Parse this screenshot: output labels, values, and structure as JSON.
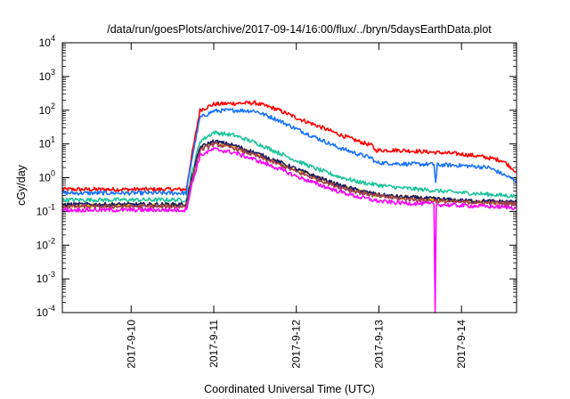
{
  "chart_data": {
    "type": "line",
    "title": "/data/run/goesPlots/archive/2017-09-14/16:00/flux/../bryn/5daysEarthData.plot",
    "xlabel": "Coordinated Universal Time (UTC)",
    "ylabel": "cGy/day",
    "y_scale": "log",
    "ylim": [
      0.0001,
      10000
    ],
    "xlim": [
      "2017-09-09 04:00",
      "2017-09-14 16:00"
    ],
    "grid": false,
    "legend": "none",
    "x_ticks": [
      "2017-9-10",
      "2017-9-11",
      "2017-9-12",
      "2017-9-13",
      "2017-9-14"
    ],
    "y_ticks": [
      {
        "base": "10",
        "exp": "4"
      },
      {
        "base": "10",
        "exp": "3"
      },
      {
        "base": "10",
        "exp": "2"
      },
      {
        "base": "10",
        "exp": "1"
      },
      {
        "base": "10",
        "exp": "0"
      },
      {
        "base": "10",
        "exp": "-1"
      },
      {
        "base": "10",
        "exp": "-2"
      },
      {
        "base": "10",
        "exp": "-3"
      },
      {
        "base": "10",
        "exp": "-4"
      }
    ],
    "series": [
      {
        "color": "#ff0000",
        "x": [
          "2017-09-09 04:00",
          "2017-09-10 16:00",
          "2017-09-10 17:30",
          "2017-09-10 20:00",
          "2017-09-11 00:00",
          "2017-09-11 06:00",
          "2017-09-11 12:00",
          "2017-09-11 18:00",
          "2017-09-12 00:00",
          "2017-09-12 06:00",
          "2017-09-12 12:00",
          "2017-09-12 18:00",
          "2017-09-12 22:00",
          "2017-09-12 23:00",
          "2017-09-13 06:00",
          "2017-09-13 12:00",
          "2017-09-13 18:00",
          "2017-09-14 00:00",
          "2017-09-14 06:00",
          "2017-09-14 12:00",
          "2017-09-14 16:00"
        ],
        "y": [
          0.45,
          0.45,
          4,
          100,
          150,
          160,
          165,
          110,
          60,
          35,
          20,
          12,
          9,
          6.5,
          6.5,
          6,
          5.5,
          5,
          4.2,
          3.2,
          1.5
        ]
      },
      {
        "color": "#1a73ff",
        "x": [
          "2017-09-09 04:00",
          "2017-09-10 16:00",
          "2017-09-10 17:30",
          "2017-09-10 20:00",
          "2017-09-11 00:00",
          "2017-09-11 06:00",
          "2017-09-11 12:00",
          "2017-09-11 18:00",
          "2017-09-12 00:00",
          "2017-09-12 06:00",
          "2017-09-12 12:00",
          "2017-09-12 18:00",
          "2017-09-12 22:00",
          "2017-09-12 23:00",
          "2017-09-13 06:00",
          "2017-09-13 12:00",
          "2017-09-13 16:00",
          "2017-09-13 16:30",
          "2017-09-13 17:00",
          "2017-09-14 00:00",
          "2017-09-14 08:00",
          "2017-09-14 16:00"
        ],
        "y": [
          0.35,
          0.35,
          3,
          60,
          95,
          100,
          95,
          55,
          28,
          15,
          8,
          5,
          3.8,
          2.8,
          2.6,
          2.5,
          2.5,
          0.7,
          2.4,
          2.3,
          2,
          0.8
        ]
      },
      {
        "color": "#1fc49a",
        "x": [
          "2017-09-09 04:00",
          "2017-09-10 16:00",
          "2017-09-10 17:30",
          "2017-09-10 20:00",
          "2017-09-11 00:00",
          "2017-09-11 06:00",
          "2017-09-11 12:00",
          "2017-09-11 18:00",
          "2017-09-12 00:00",
          "2017-09-12 06:00",
          "2017-09-12 12:00",
          "2017-09-12 18:00",
          "2017-09-13 00:00",
          "2017-09-13 06:00",
          "2017-09-13 12:00",
          "2017-09-13 18:00",
          "2017-09-14 00:00",
          "2017-09-14 08:00",
          "2017-09-14 16:00"
        ],
        "y": [
          0.22,
          0.22,
          1.2,
          12,
          22,
          18,
          11,
          6,
          3.2,
          1.8,
          1.1,
          0.75,
          0.6,
          0.5,
          0.45,
          0.4,
          0.36,
          0.32,
          0.28
        ]
      },
      {
        "color": "#e6b800",
        "x": [
          "2017-09-09 04:00",
          "2017-09-10 16:00",
          "2017-09-10 17:30",
          "2017-09-10 20:00",
          "2017-09-11 00:00",
          "2017-09-11 06:00",
          "2017-09-11 12:00",
          "2017-09-11 18:00",
          "2017-09-12 00:00",
          "2017-09-12 06:00",
          "2017-09-12 12:00",
          "2017-09-12 18:00",
          "2017-09-13 00:00",
          "2017-09-13 06:00",
          "2017-09-13 12:00",
          "2017-09-13 18:00",
          "2017-09-14 00:00",
          "2017-09-14 08:00",
          "2017-09-14 16:00"
        ],
        "y": [
          0.15,
          0.15,
          0.8,
          7,
          11,
          8,
          5,
          3,
          1.7,
          1,
          0.6,
          0.4,
          0.3,
          0.26,
          0.24,
          0.22,
          0.2,
          0.19,
          0.18
        ]
      },
      {
        "color": "#1a1a66",
        "x": [
          "2017-09-09 04:00",
          "2017-09-10 16:00",
          "2017-09-10 17:30",
          "2017-09-10 20:00",
          "2017-09-11 00:00",
          "2017-09-11 06:00",
          "2017-09-11 12:00",
          "2017-09-11 18:00",
          "2017-09-12 00:00",
          "2017-09-12 06:00",
          "2017-09-12 12:00",
          "2017-09-12 18:00",
          "2017-09-13 00:00",
          "2017-09-13 06:00",
          "2017-09-13 12:00",
          "2017-09-13 18:00",
          "2017-09-14 00:00",
          "2017-09-14 08:00",
          "2017-09-14 16:00"
        ],
        "y": [
          0.16,
          0.16,
          0.9,
          8,
          12,
          9,
          5.5,
          3.2,
          1.8,
          1.05,
          0.62,
          0.42,
          0.31,
          0.27,
          0.25,
          0.23,
          0.21,
          0.2,
          0.19
        ]
      },
      {
        "color": "#a0404f",
        "x": [
          "2017-09-09 04:00",
          "2017-09-10 16:00",
          "2017-09-10 17:30",
          "2017-09-10 20:00",
          "2017-09-11 00:00",
          "2017-09-11 06:00",
          "2017-09-11 12:00",
          "2017-09-11 18:00",
          "2017-09-12 00:00",
          "2017-09-12 06:00",
          "2017-09-12 12:00",
          "2017-09-12 18:00",
          "2017-09-13 00:00",
          "2017-09-13 06:00",
          "2017-09-13 12:00",
          "2017-09-13 18:00",
          "2017-09-14 00:00",
          "2017-09-14 08:00",
          "2017-09-14 16:00"
        ],
        "y": [
          0.14,
          0.14,
          0.75,
          6.5,
          10,
          7.5,
          4.6,
          2.7,
          1.5,
          0.9,
          0.55,
          0.37,
          0.28,
          0.24,
          0.22,
          0.2,
          0.19,
          0.18,
          0.17
        ]
      },
      {
        "color": "#ff00ff",
        "x": [
          "2017-09-09 04:00",
          "2017-09-10 16:00",
          "2017-09-10 17:30",
          "2017-09-10 20:00",
          "2017-09-11 00:00",
          "2017-09-11 06:00",
          "2017-09-11 12:00",
          "2017-09-11 18:00",
          "2017-09-12 00:00",
          "2017-09-12 06:00",
          "2017-09-12 12:00",
          "2017-09-12 18:00",
          "2017-09-13 00:00",
          "2017-09-13 06:00",
          "2017-09-13 12:00",
          "2017-09-13 16:00",
          "2017-09-13 16:20",
          "2017-09-13 16:40",
          "2017-09-14 00:00",
          "2017-09-14 08:00",
          "2017-09-14 16:00"
        ],
        "y": [
          0.11,
          0.11,
          0.55,
          4.5,
          7,
          5.5,
          3.4,
          2,
          1.1,
          0.65,
          0.4,
          0.27,
          0.2,
          0.18,
          0.17,
          0.165,
          0.0001,
          0.16,
          0.15,
          0.14,
          0.13
        ]
      }
    ]
  }
}
